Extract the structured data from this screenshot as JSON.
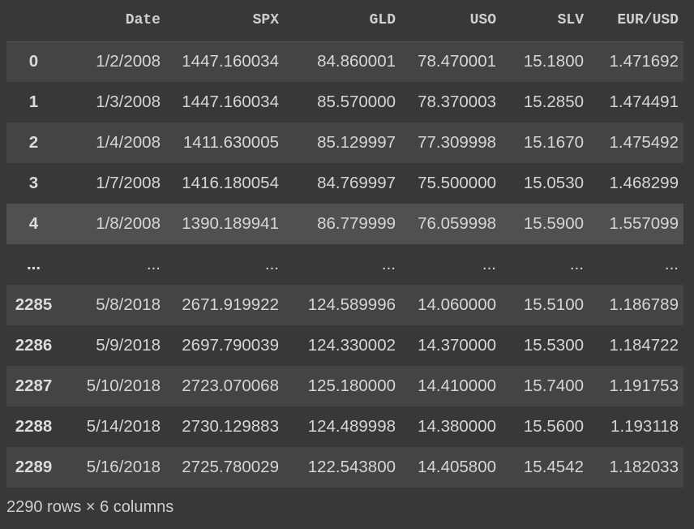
{
  "table": {
    "columns": [
      "",
      "Date",
      "SPX",
      "GLD",
      "USO",
      "SLV",
      "EUR/USD"
    ],
    "rows": [
      [
        "0",
        "1/2/2008",
        "1447.160034",
        "84.860001",
        "78.470001",
        "15.1800",
        "1.471692"
      ],
      [
        "1",
        "1/3/2008",
        "1447.160034",
        "85.570000",
        "78.370003",
        "15.2850",
        "1.474491"
      ],
      [
        "2",
        "1/4/2008",
        "1411.630005",
        "85.129997",
        "77.309998",
        "15.1670",
        "1.475492"
      ],
      [
        "3",
        "1/7/2008",
        "1416.180054",
        "84.769997",
        "75.500000",
        "15.0530",
        "1.468299"
      ],
      [
        "4",
        "1/8/2008",
        "1390.189941",
        "86.779999",
        "76.059998",
        "15.5900",
        "1.557099"
      ],
      [
        "...",
        "...",
        "...",
        "...",
        "...",
        "...",
        "..."
      ],
      [
        "2285",
        "5/8/2018",
        "2671.919922",
        "124.589996",
        "14.060000",
        "15.5100",
        "1.186789"
      ],
      [
        "2286",
        "5/9/2018",
        "2697.790039",
        "124.330002",
        "14.370000",
        "15.5300",
        "1.184722"
      ],
      [
        "2287",
        "5/10/2018",
        "2723.070068",
        "125.180000",
        "14.410000",
        "15.7400",
        "1.191753"
      ],
      [
        "2288",
        "5/14/2018",
        "2730.129883",
        "124.489998",
        "14.380000",
        "15.5600",
        "1.193118"
      ],
      [
        "2289",
        "5/16/2018",
        "2725.780029",
        "122.543800",
        "14.405800",
        "15.4542",
        "1.182033"
      ]
    ]
  },
  "footer": {
    "shape": "2290 rows × 6 columns"
  }
}
